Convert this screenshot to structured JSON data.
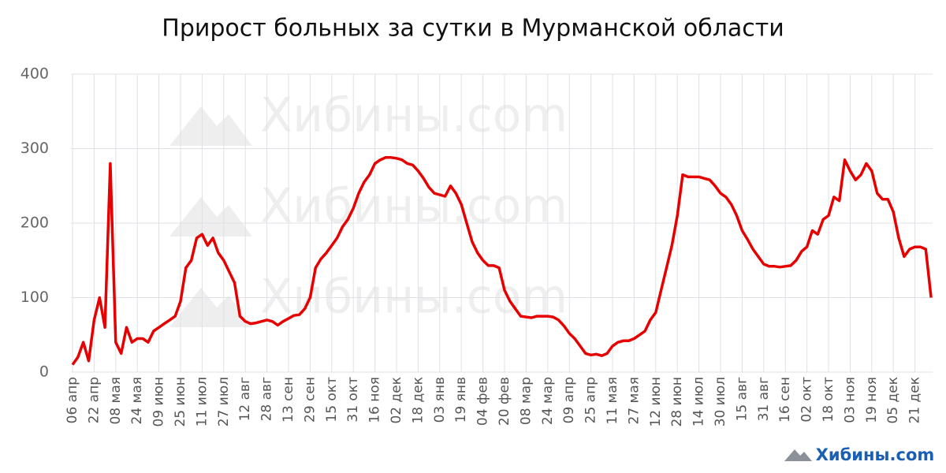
{
  "chart_data": {
    "type": "line",
    "title": "Прирост больных за сутки в Мурманской области",
    "watermark": "Хибины.com",
    "categories": [
      "06 апр",
      null,
      null,
      null,
      "22 апр",
      null,
      null,
      null,
      "08 мая",
      null,
      null,
      null,
      "24 мая",
      null,
      null,
      null,
      "09 июн",
      null,
      null,
      null,
      "25 июн",
      null,
      null,
      null,
      "11 июл",
      null,
      null,
      null,
      "27 июл",
      null,
      null,
      null,
      "12 авг",
      null,
      null,
      null,
      "28 авг",
      null,
      null,
      null,
      "13 сен",
      null,
      null,
      null,
      "29 сен",
      null,
      null,
      null,
      "15 окт",
      null,
      null,
      null,
      "31 окт",
      null,
      null,
      null,
      "16 ноя",
      null,
      null,
      null,
      "02 дек",
      null,
      null,
      null,
      "18 дек",
      null,
      null,
      null,
      "03 янв",
      null,
      null,
      null,
      "19 янв",
      null,
      null,
      null,
      "04 фев",
      null,
      null,
      null,
      "20 фев",
      null,
      null,
      null,
      "08 мар",
      null,
      null,
      null,
      "24 мар",
      null,
      null,
      null,
      "09 апр",
      null,
      null,
      null,
      "25 апр",
      null,
      null,
      null,
      "11 мая",
      null,
      null,
      null,
      "27 мая",
      null,
      null,
      null,
      "12 июн",
      null,
      null,
      null,
      "28 июн",
      null,
      null,
      null,
      "14 июл",
      null,
      null,
      null,
      "30 июл",
      null,
      null,
      null,
      "15 авг",
      null,
      null,
      null,
      "31 авг",
      null,
      null,
      null,
      "16 сен",
      null,
      null,
      null,
      "02 окт",
      null,
      null,
      null,
      "18 окт",
      null,
      null,
      null,
      "03 ноя",
      null,
      null,
      null,
      "19 ноя",
      null,
      null,
      null,
      "05 дек",
      null,
      null,
      null,
      "21 дек",
      null,
      null,
      null
    ],
    "series": [
      {
        "color": "#e60000",
        "values": [
          10,
          20,
          40,
          15,
          70,
          100,
          60,
          280,
          40,
          25,
          60,
          40,
          45,
          45,
          40,
          55,
          60,
          65,
          70,
          75,
          95,
          140,
          150,
          180,
          185,
          170,
          180,
          160,
          150,
          135,
          120,
          75,
          68,
          65,
          66,
          68,
          70,
          68,
          63,
          68,
          72,
          76,
          77,
          85,
          100,
          140,
          152,
          160,
          170,
          180,
          195,
          205,
          220,
          240,
          255,
          265,
          280,
          285,
          288,
          288,
          287,
          285,
          280,
          278,
          270,
          260,
          248,
          240,
          238,
          236,
          250,
          240,
          225,
          200,
          175,
          160,
          150,
          143,
          143,
          140,
          110,
          95,
          85,
          75,
          74,
          73,
          75,
          75,
          75,
          74,
          70,
          62,
          52,
          45,
          35,
          25,
          23,
          24,
          22,
          25,
          35,
          40,
          42,
          42,
          45,
          50,
          55,
          70,
          80,
          110,
          140,
          170,
          210,
          265,
          262,
          262,
          262,
          260,
          258,
          250,
          240,
          235,
          225,
          210,
          190,
          178,
          165,
          155,
          145,
          142,
          142,
          141,
          142,
          143,
          150,
          162,
          168,
          190,
          185,
          205,
          210,
          235,
          230,
          285,
          270,
          258,
          265,
          280,
          270,
          240,
          232,
          232,
          215,
          180,
          155,
          165,
          168,
          168,
          165,
          100
        ]
      }
    ],
    "ylim": [
      0,
      400
    ],
    "yticks": [
      0,
      100,
      200,
      300,
      400
    ],
    "grid": true
  }
}
